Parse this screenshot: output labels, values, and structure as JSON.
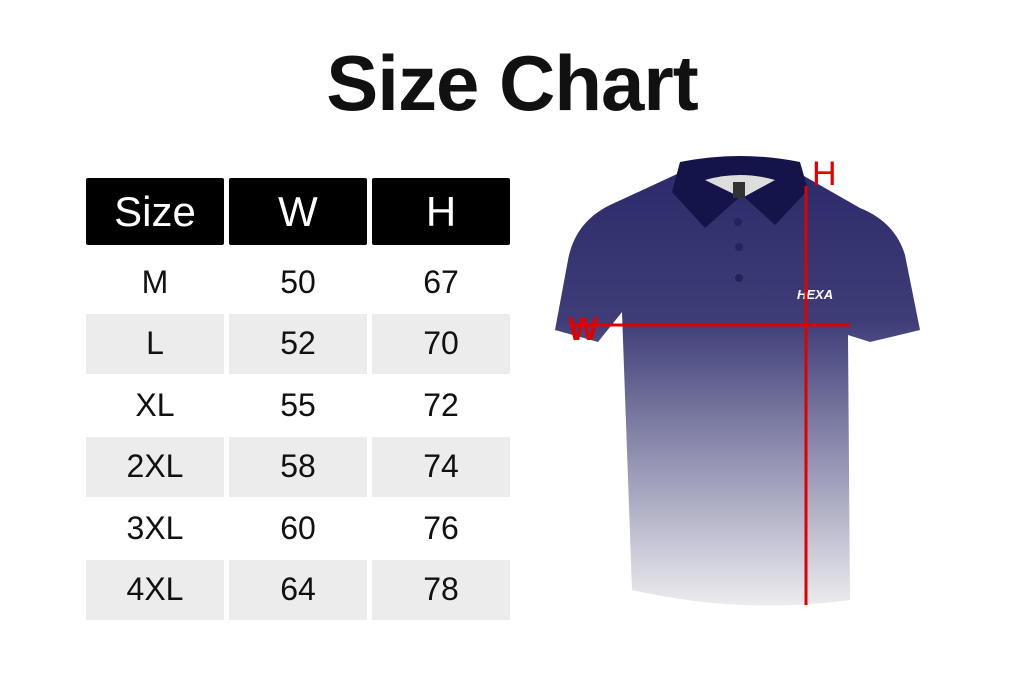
{
  "title": "Size Chart",
  "table": {
    "headers": [
      "Size",
      "W",
      "H"
    ],
    "rows": [
      [
        "M",
        "50",
        "67"
      ],
      [
        "L",
        "52",
        "70"
      ],
      [
        "XL",
        "55",
        "72"
      ],
      [
        "2XL",
        "58",
        "74"
      ],
      [
        "3XL",
        "60",
        "76"
      ],
      [
        "4XL",
        "64",
        "78"
      ]
    ]
  },
  "shirt": {
    "brand": "HEXA",
    "width_label": "W",
    "height_label": "H",
    "colors": {
      "top": "#2c2b6a",
      "bottom": "#ececef",
      "measure": "#e00000"
    }
  }
}
